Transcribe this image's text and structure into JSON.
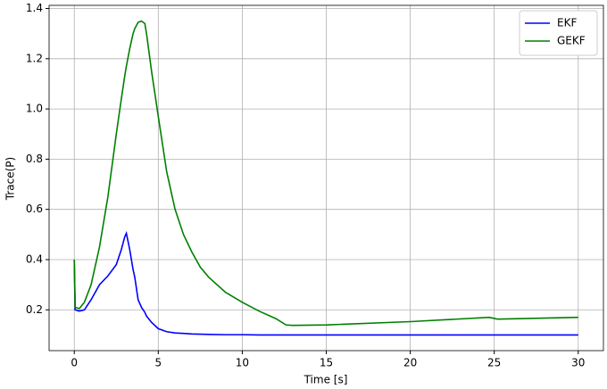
{
  "chart_data": {
    "type": "line",
    "x_label": "Time [s]",
    "y_label": "Trace(P)",
    "x": [
      0,
      0.05,
      0.3,
      0.6,
      1,
      1.5,
      2,
      2.5,
      2.8,
      3,
      3.1,
      3.3,
      3.5,
      3.6,
      3.8,
      4,
      4.2,
      4.3,
      4.6,
      5,
      5.5,
      6,
      6.5,
      7,
      7.5,
      8,
      9,
      10,
      11,
      12,
      12.6,
      13,
      15,
      20,
      24.7,
      25.2,
      30
    ],
    "series": [
      {
        "name": "EKF",
        "color": "#0000ff",
        "values": [
          0.4,
          0.2,
          0.195,
          0.2,
          0.24,
          0.3,
          0.335,
          0.38,
          0.44,
          0.49,
          0.505,
          0.44,
          0.36,
          0.33,
          0.24,
          0.21,
          0.19,
          0.175,
          0.15,
          0.125,
          0.113,
          0.108,
          0.106,
          0.104,
          0.103,
          0.102,
          0.101,
          0.101,
          0.1,
          0.1,
          0.1,
          0.1,
          0.1,
          0.1,
          0.1,
          0.1,
          0.1
        ]
      },
      {
        "name": "GEKF",
        "color": "#008000",
        "values": [
          0.4,
          0.21,
          0.205,
          0.23,
          0.3,
          0.45,
          0.65,
          0.9,
          1.04,
          1.13,
          1.17,
          1.24,
          1.3,
          1.32,
          1.345,
          1.35,
          1.34,
          1.3,
          1.15,
          0.97,
          0.75,
          0.6,
          0.5,
          0.43,
          0.37,
          0.33,
          0.27,
          0.23,
          0.195,
          0.165,
          0.14,
          0.138,
          0.14,
          0.153,
          0.17,
          0.163,
          0.17
        ]
      }
    ],
    "xlim": [
      -1.5,
      31.5
    ],
    "xticks": [
      0,
      5,
      10,
      15,
      20,
      25,
      30
    ],
    "ylim": [
      0.0375,
      1.4125
    ],
    "yticks": [
      0.2,
      0.4,
      0.6,
      0.8,
      {
        "value": 1,
        "label": "1.0"
      },
      1.2,
      1.4
    ],
    "grid": true,
    "legend": "upper-right"
  }
}
